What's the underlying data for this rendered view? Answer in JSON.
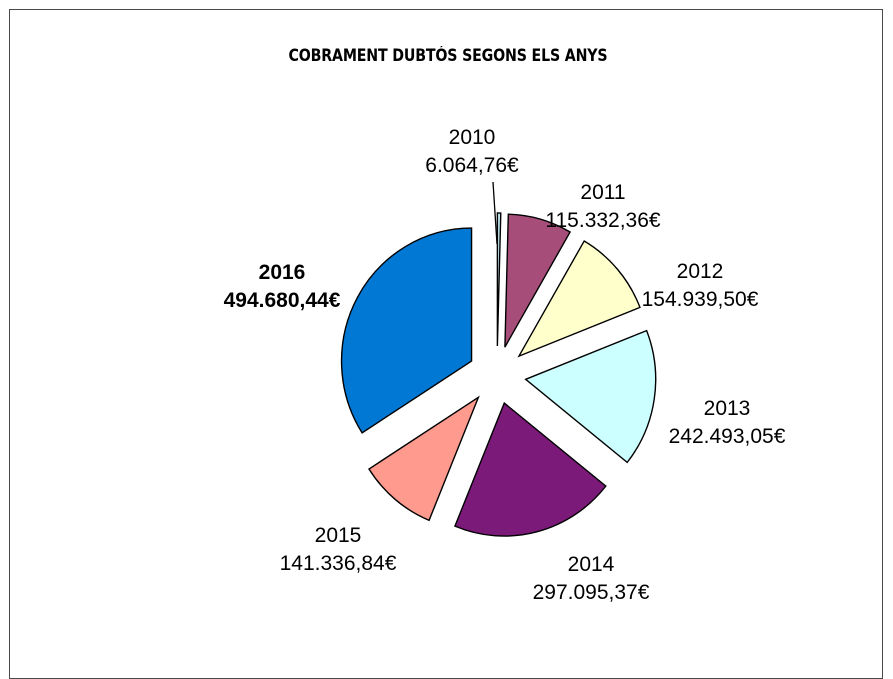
{
  "chart_data": {
    "type": "pie",
    "title": "COBRAMENT DUBTÓS SEGONS ELS ANYS",
    "exploded": true,
    "slices": [
      {
        "label": "2010",
        "value_text": "6.064,76€",
        "value": 6064.76,
        "color": "#bfe4f0",
        "bold": false
      },
      {
        "label": "2011",
        "value_text": "115.332,36€",
        "value": 115332.36,
        "color": "#a64d79",
        "bold": false
      },
      {
        "label": "2012",
        "value_text": "154.939,50€",
        "value": 154939.5,
        "color": "#ffffcc",
        "bold": false
      },
      {
        "label": "2013",
        "value_text": "242.493,05€",
        "value": 242493.05,
        "color": "#ccffff",
        "bold": false
      },
      {
        "label": "2014",
        "value_text": "297.095,37€",
        "value": 297095.37,
        "color": "#7b1a78",
        "bold": false
      },
      {
        "label": "2015",
        "value_text": "141.336,84€",
        "value": 141336.84,
        "color": "#ff9a8e",
        "bold": false
      },
      {
        "label": "2016",
        "value_text": "494.680,44€",
        "value": 494680.44,
        "color": "#0078d4",
        "bold": true
      }
    ]
  }
}
